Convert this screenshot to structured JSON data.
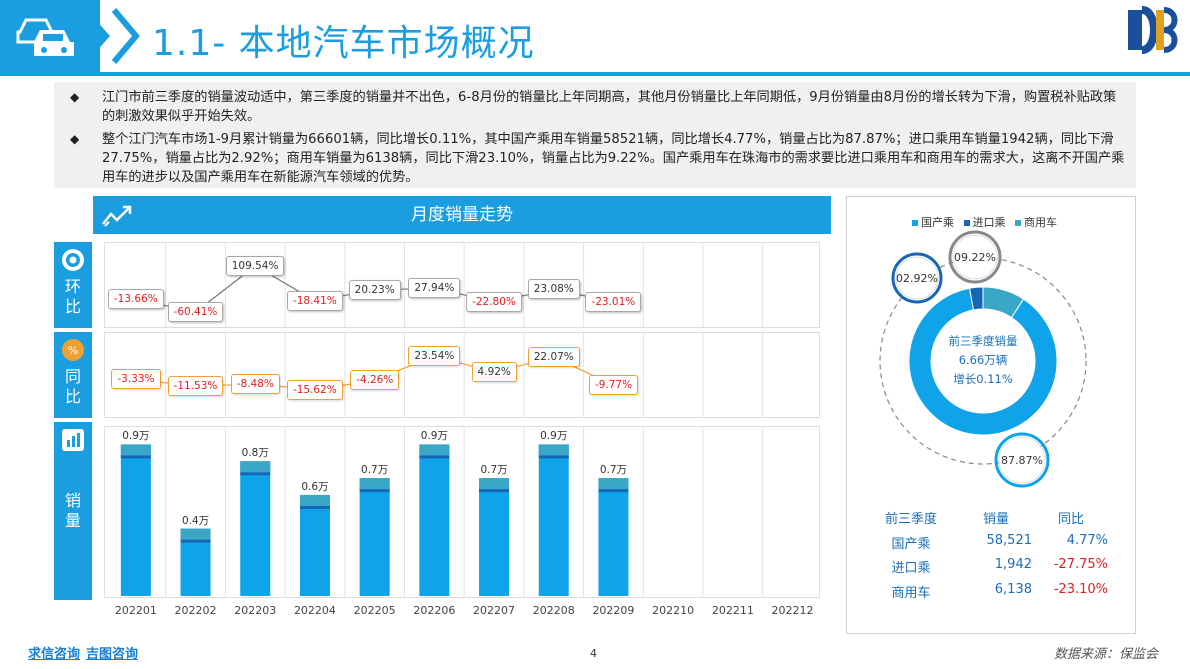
{
  "header": {
    "title": "1.1- 本地汽车市场概况"
  },
  "summary": [
    "江门市前三季度的销量波动适中，第三季度的销量并不出色，6-8月份的销量比上年同期高，其他月份销量比上年同期低，9月份销量由8月份的增长转为下滑，购置税补贴政策的刺激效果似乎开始失效。",
    "整个江门汽车市场1-9月累计销量为66601辆，同比增长0.11%，其中国产乘用车销量58521辆，同比增长4.77%，销量占比为87.87%；进口乘用车销量1942辆，同比下滑27.75%，销量占比为2.92%；商用车销量为6138辆，同比下滑23.10%，销量占比为9.22%。国产乘用车在珠海市的需求要比进口乘用车和商用车的需求大，这离不开国产乘用车的进步以及国产乘用车在新能源汽车领域的优势。"
  ],
  "banner": {
    "title": "月度销量走势"
  },
  "side_tabs": {
    "huanbi": [
      "环",
      "比"
    ],
    "tongbi": [
      "同",
      "比"
    ],
    "xiaoliang": [
      "销",
      "量"
    ]
  },
  "colors": {
    "accent": "#1a9ee0",
    "bar_main": "#0fa3ea",
    "bar_dark": "#1766b5",
    "bar_top": "#3aa7c6",
    "neg": "#e02020",
    "orange": "#f0a030"
  },
  "chart_data": [
    {
      "type": "line",
      "name_label": "环比",
      "x": [
        "202201",
        "202202",
        "202203",
        "202204",
        "202205",
        "202206",
        "202207",
        "202208",
        "202209"
      ],
      "values": [
        -13.66,
        -60.41,
        109.54,
        -18.41,
        20.23,
        27.94,
        -22.8,
        23.08,
        -23.01
      ],
      "labels": [
        "-13.66%",
        "-60.41%",
        "109.54%",
        "-18.41%",
        "20.23%",
        "27.94%",
        "-22.80%",
        "23.08%",
        "-23.01%"
      ]
    },
    {
      "type": "line",
      "name_label": "同比",
      "x": [
        "202201",
        "202202",
        "202203",
        "202204",
        "202205",
        "202206",
        "202207",
        "202208",
        "202209"
      ],
      "values": [
        -3.33,
        -11.53,
        -8.48,
        -15.62,
        -4.26,
        23.54,
        4.92,
        22.07,
        -9.77
      ],
      "labels": [
        "-3.33%",
        "-11.53%",
        "-8.48%",
        "-15.62%",
        "-4.26%",
        "23.54%",
        "4.92%",
        "22.07%",
        "-9.77%"
      ]
    },
    {
      "type": "bar",
      "name_label": "销量",
      "categories": [
        "202201",
        "202202",
        "202203",
        "202204",
        "202205",
        "202206",
        "202207",
        "202208",
        "202209",
        "202210",
        "202211",
        "202212"
      ],
      "values": [
        0.9,
        0.4,
        0.8,
        0.6,
        0.7,
        0.9,
        0.7,
        0.9,
        0.7,
        null,
        null,
        null
      ],
      "labels": [
        "0.9万",
        "0.4万",
        "0.8万",
        "0.6万",
        "0.7万",
        "0.9万",
        "0.7万",
        "0.9万",
        "0.7万",
        "",
        "",
        ""
      ]
    },
    {
      "type": "pie",
      "legend": [
        "国产乘",
        "进口乘",
        "商用车"
      ],
      "values": [
        87.87,
        2.92,
        9.22
      ],
      "labels": [
        "87.87%",
        "02.92%",
        "09.22%"
      ],
      "center_lines": [
        "前三季度销量",
        "6.66万辆",
        "增长0.11%"
      ],
      "colors": [
        "#0fa3ea",
        "#1766b5",
        "#3aa7c6"
      ]
    }
  ],
  "table": {
    "headers": [
      "前三季度",
      "销量",
      "同比"
    ],
    "rows": [
      {
        "name": "国产乘",
        "sales": "58,521",
        "yoy": "4.77%",
        "neg": false
      },
      {
        "name": "进口乘",
        "sales": "1,942",
        "yoy": "-27.75%",
        "neg": true
      },
      {
        "name": "商用车",
        "sales": "6,138",
        "yoy": "-23.10%",
        "neg": true
      }
    ]
  },
  "footer": {
    "brand1": "求信咨询",
    "brand2": "吉图咨询",
    "page": "4",
    "source": "数据来源：保监会"
  }
}
